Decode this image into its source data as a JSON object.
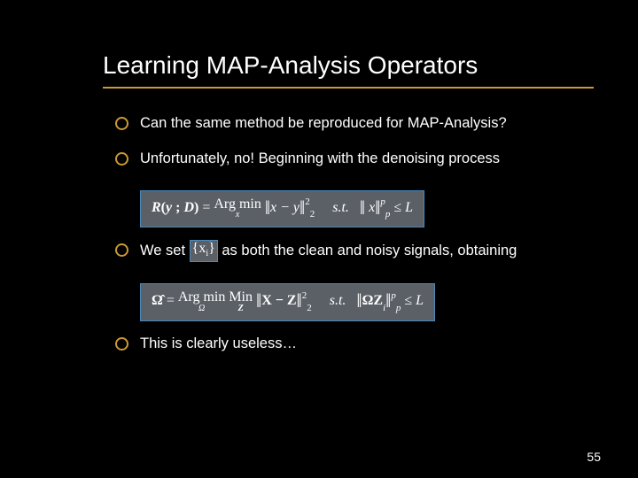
{
  "slide": {
    "title": "Learning MAP-Analysis Operators",
    "bullets": {
      "b1": "Can the same method be reproduced for MAP-Analysis?",
      "b2": "Unfortunately, no! Beginning with the denoising process",
      "b3_pre": "We set ",
      "b3_post": " as both the clean and noisy signals, obtaining",
      "b4": "This is clearly useless…"
    },
    "equations": {
      "eq1": {
        "lhs": "R(y ; D) =",
        "op": "Arg min",
        "op_under": "x",
        "term1_l": "‖",
        "term1_body": "x − y",
        "term1_r": "‖",
        "term1_sub": "2",
        "term1_sup": "2",
        "st": "s.t.",
        "term2_l": "‖",
        "term2_body": "  x",
        "term2_r": "‖",
        "term2_sub": "p",
        "term2_sup": "p",
        "tail": " ≤ L"
      },
      "set": {
        "l": "{",
        "body": "x",
        "sub": "i",
        "r": "}"
      },
      "eq2": {
        "lhs": "Ω̂ =",
        "op1": "Arg min",
        "op1_under": "Ω",
        "op2": "Min",
        "op2_under": "Z",
        "t1_l": "‖",
        "t1_body": "X − Z",
        "t1_r": "‖",
        "t1_sub": "2",
        "t1_sup": "2",
        "st": "s.t.",
        "t2_l": "‖",
        "t2_body": "ΩZ",
        "t2_body_sub": "i",
        "t2_r": "‖",
        "t2_sub": "p",
        "t2_sup": "p",
        "tail": " ≤ L"
      }
    },
    "number": "55"
  },
  "style": {
    "background": "#000000",
    "accent": "#cc9933",
    "eq_bg": "#5b5f66",
    "eq_border": "#4a8abf",
    "text": "#ffffff",
    "title_fontsize": 28,
    "body_fontsize": 16.5,
    "eq_fontsize": 16
  }
}
